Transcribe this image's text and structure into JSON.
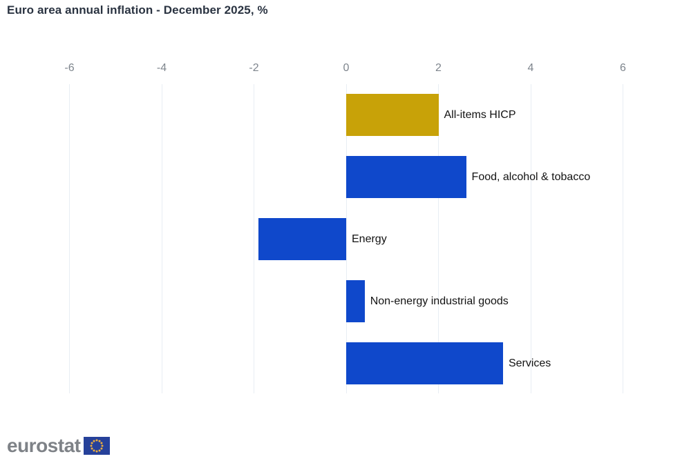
{
  "header": {
    "title": "Euro area annual inflation - December 2025, %"
  },
  "chart_data": {
    "type": "bar",
    "orientation": "horizontal",
    "title": "Euro area annual inflation - December 2025, %",
    "categories": [
      "All-items HICP",
      "Food, alcohol & tobacco",
      "Energy",
      "Non-energy industrial goods",
      "Services"
    ],
    "values": [
      2.0,
      2.6,
      -1.9,
      0.4,
      3.4
    ],
    "bar_colors": [
      "#c8a208",
      "#0f48cb",
      "#0f48cb",
      "#0f48cb",
      "#0f48cb"
    ],
    "xlim": [
      -6,
      6
    ],
    "x_ticks": [
      -6,
      -4,
      -2,
      0,
      2,
      4,
      6
    ],
    "grid": true,
    "legend": "none",
    "unit": "%"
  },
  "footer": {
    "logo_text": "eurostat",
    "flag_icon": "eu-flag-icon"
  },
  "colors": {
    "bar_blue": "#0f48cb",
    "bar_gold": "#c8a208",
    "gridline": "#e8edf3",
    "tick_text": "#7d848c",
    "title_text": "#2a3341",
    "logo_gray": "#7e8287",
    "flag_blue": "#26419a",
    "flag_stars": "#edae3d"
  }
}
